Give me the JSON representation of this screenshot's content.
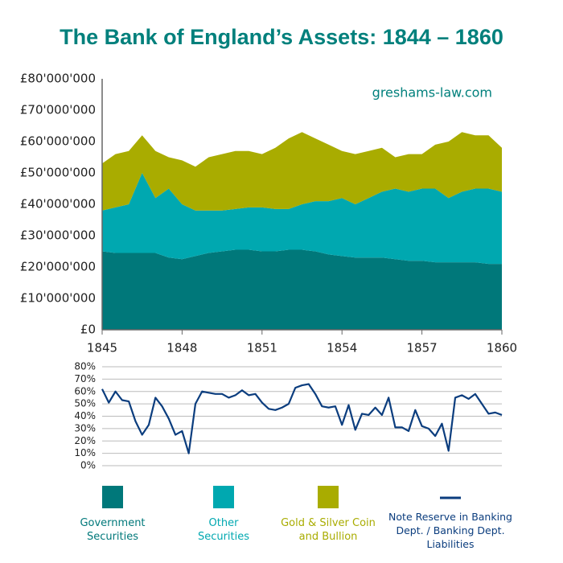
{
  "chart_data": [
    {
      "type": "area",
      "stacked": true,
      "title": "The Bank of England’s Assets: 1844 – 1860",
      "annotation": "greshams-law.com",
      "x": [
        1845,
        1845.5,
        1846,
        1846.5,
        1847,
        1847.5,
        1848,
        1848.5,
        1849,
        1849.5,
        1850,
        1850.5,
        1851,
        1851.5,
        1852,
        1852.5,
        1853,
        1853.5,
        1854,
        1854.5,
        1855,
        1855.5,
        1856,
        1856.5,
        1857,
        1857.5,
        1858,
        1858.5,
        1859,
        1859.5,
        1860
      ],
      "xlim": [
        1845,
        1860
      ],
      "xticks": [
        1845,
        1848,
        1851,
        1854,
        1857,
        1860
      ],
      "ylim": [
        0,
        80000000
      ],
      "yticks": [
        {
          "value": 0,
          "label": "£0"
        },
        {
          "value": 10000000,
          "label": "£10'000'000"
        },
        {
          "value": 20000000,
          "label": "£20'000'000"
        },
        {
          "value": 30000000,
          "label": "£30'000'000"
        },
        {
          "value": 40000000,
          "label": "£40'000'000"
        },
        {
          "value": 50000000,
          "label": "£50'000'000"
        },
        {
          "value": 60000000,
          "label": "£60'000'000"
        },
        {
          "value": 70000000,
          "label": "£70'000'000"
        },
        {
          "value": 80000000,
          "label": "£80'000'000"
        }
      ],
      "grid": false,
      "series": [
        {
          "name": "Government Securities",
          "color": "#00787a",
          "values": [
            25000000,
            24500000,
            24500000,
            24500000,
            24500000,
            23000000,
            22500000,
            23500000,
            24500000,
            25000000,
            25500000,
            25500000,
            25000000,
            25000000,
            25500000,
            25500000,
            25000000,
            24000000,
            23500000,
            23000000,
            23000000,
            23000000,
            22500000,
            22000000,
            22000000,
            21500000,
            21500000,
            21500000,
            21500000,
            21000000,
            21000000
          ]
        },
        {
          "name": "Other Securities",
          "color": "#00a8b0",
          "values": [
            13000000,
            14500000,
            15500000,
            25500000,
            17500000,
            22000000,
            17500000,
            14500000,
            13500000,
            13000000,
            13000000,
            13500000,
            14000000,
            13500000,
            13000000,
            14500000,
            16000000,
            17000000,
            18500000,
            17000000,
            19000000,
            21000000,
            22500000,
            22000000,
            23000000,
            23500000,
            20500000,
            22500000,
            23500000,
            24000000,
            23000000
          ]
        },
        {
          "name": "Gold & Silver Coin and Bullion",
          "color": "#a9ac00",
          "values": [
            15000000,
            17000000,
            17000000,
            12000000,
            15000000,
            10000000,
            14000000,
            14000000,
            17000000,
            18000000,
            18500000,
            18000000,
            17000000,
            19500000,
            22500000,
            23000000,
            20000000,
            18000000,
            15000000,
            16000000,
            15000000,
            14000000,
            10000000,
            12000000,
            11000000,
            14000000,
            18000000,
            19000000,
            17000000,
            17000000,
            14000000
          ]
        }
      ]
    },
    {
      "type": "line",
      "x": [
        1845,
        1845.25,
        1845.5,
        1845.75,
        1846,
        1846.25,
        1846.5,
        1846.75,
        1847,
        1847.25,
        1847.5,
        1847.75,
        1848,
        1848.25,
        1848.5,
        1848.75,
        1849,
        1849.25,
        1849.5,
        1849.75,
        1850,
        1850.25,
        1850.5,
        1850.75,
        1851,
        1851.25,
        1851.5,
        1851.75,
        1852,
        1852.25,
        1852.5,
        1852.75,
        1853,
        1853.25,
        1853.5,
        1853.75,
        1854,
        1854.25,
        1854.5,
        1854.75,
        1855,
        1855.25,
        1855.5,
        1855.75,
        1856,
        1856.25,
        1856.5,
        1856.75,
        1857,
        1857.25,
        1857.5,
        1857.75,
        1858,
        1858.25,
        1858.5,
        1858.75,
        1859,
        1859.25,
        1859.5,
        1859.75,
        1860
      ],
      "xlim": [
        1845,
        1860
      ],
      "ylim": [
        0,
        80
      ],
      "yticks": [
        {
          "value": 0,
          "label": "0%"
        },
        {
          "value": 10,
          "label": "10%"
        },
        {
          "value": 20,
          "label": "20%"
        },
        {
          "value": 30,
          "label": "30%"
        },
        {
          "value": 40,
          "label": "40%"
        },
        {
          "value": 50,
          "label": "50%"
        },
        {
          "value": 60,
          "label": "60%"
        },
        {
          "value": 70,
          "label": "70%"
        },
        {
          "value": 80,
          "label": "80%"
        }
      ],
      "grid": true,
      "series": [
        {
          "name": "Note Reserve in Banking Dept. / Banking Dept. Liabilities",
          "color": "#0b3d7e",
          "values": [
            62,
            51,
            60,
            53,
            52,
            36,
            25,
            33,
            55,
            48,
            38,
            25,
            28,
            10,
            50,
            60,
            59,
            58,
            58,
            55,
            57,
            61,
            57,
            58,
            51,
            46,
            45,
            47,
            50,
            63,
            65,
            66,
            58,
            48,
            47,
            48,
            33,
            49,
            29,
            42,
            41,
            47,
            41,
            55,
            31,
            31,
            28,
            45,
            32,
            30,
            24,
            34,
            12,
            55,
            57,
            54,
            58,
            50,
            42,
            43,
            41
          ]
        }
      ]
    }
  ]
}
